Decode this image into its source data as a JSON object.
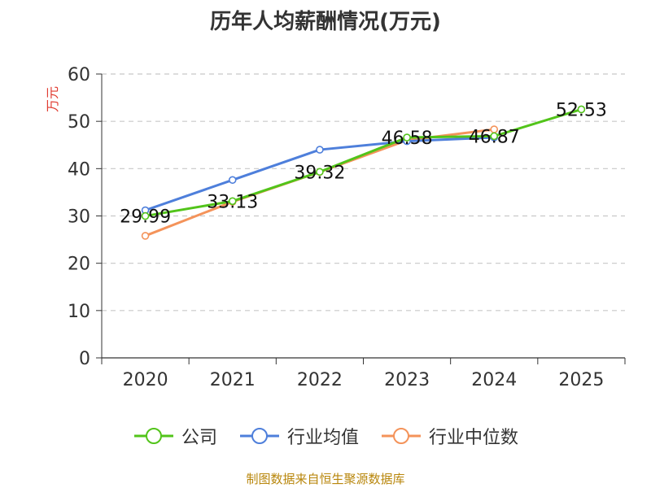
{
  "chart_data": {
    "type": "line",
    "title": "历年人均薪酬情况(万元)",
    "ylabel": "万元",
    "xlabel": "",
    "categories": [
      "2020",
      "2021",
      "2022",
      "2023",
      "2024",
      "2025"
    ],
    "ylim": [
      0,
      60
    ],
    "yticks": [
      0,
      10,
      20,
      30,
      40,
      50,
      60
    ],
    "grid": true,
    "legend_position": "bottom",
    "series": [
      {
        "name": "公司",
        "color": "#52c41a",
        "values": [
          29.99,
          33.13,
          39.32,
          46.58,
          46.87,
          52.53
        ],
        "labels": [
          "29.99",
          "33.13",
          "39.32",
          "46.58",
          "46.87",
          "52.53"
        ]
      },
      {
        "name": "行业均值",
        "color": "#4e7fdb",
        "values": [
          31.2,
          37.6,
          44.0,
          45.8,
          46.6,
          null
        ]
      },
      {
        "name": "行业中位数",
        "color": "#f4935a",
        "values": [
          25.8,
          33.0,
          39.3,
          46.0,
          48.3,
          null
        ]
      }
    ]
  },
  "source": "制图数据来自恒生聚源数据库"
}
